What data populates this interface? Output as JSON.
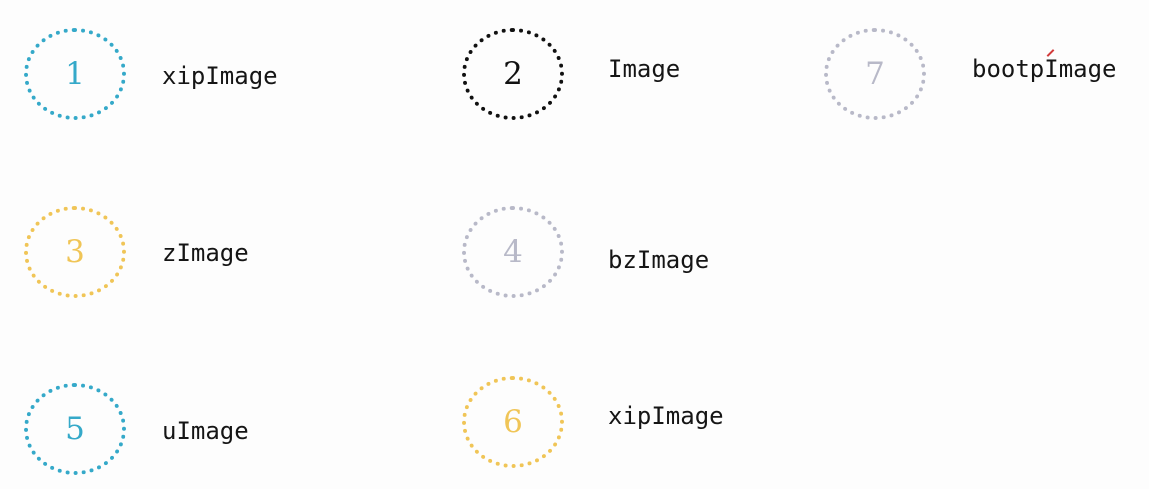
{
  "colors": {
    "blue": "#35a9c9",
    "black": "#111111",
    "gray": "#b8b9c8",
    "yellow": "#f0c557"
  },
  "items": [
    {
      "number": "1",
      "label": "xipImage",
      "color": "#35a9c9"
    },
    {
      "number": "2",
      "label": "Image",
      "color": "#111111"
    },
    {
      "number": "7",
      "label": "bootpImage",
      "color": "#b8b9c8"
    },
    {
      "number": "3",
      "label": "zImage",
      "color": "#f0c557"
    },
    {
      "number": "4",
      "label": "bzImage",
      "color": "#b8b9c8"
    },
    {
      "number": "5",
      "label": "uImage",
      "color": "#35a9c9"
    },
    {
      "number": "6",
      "label": "xipImage",
      "color": "#f0c557"
    }
  ]
}
